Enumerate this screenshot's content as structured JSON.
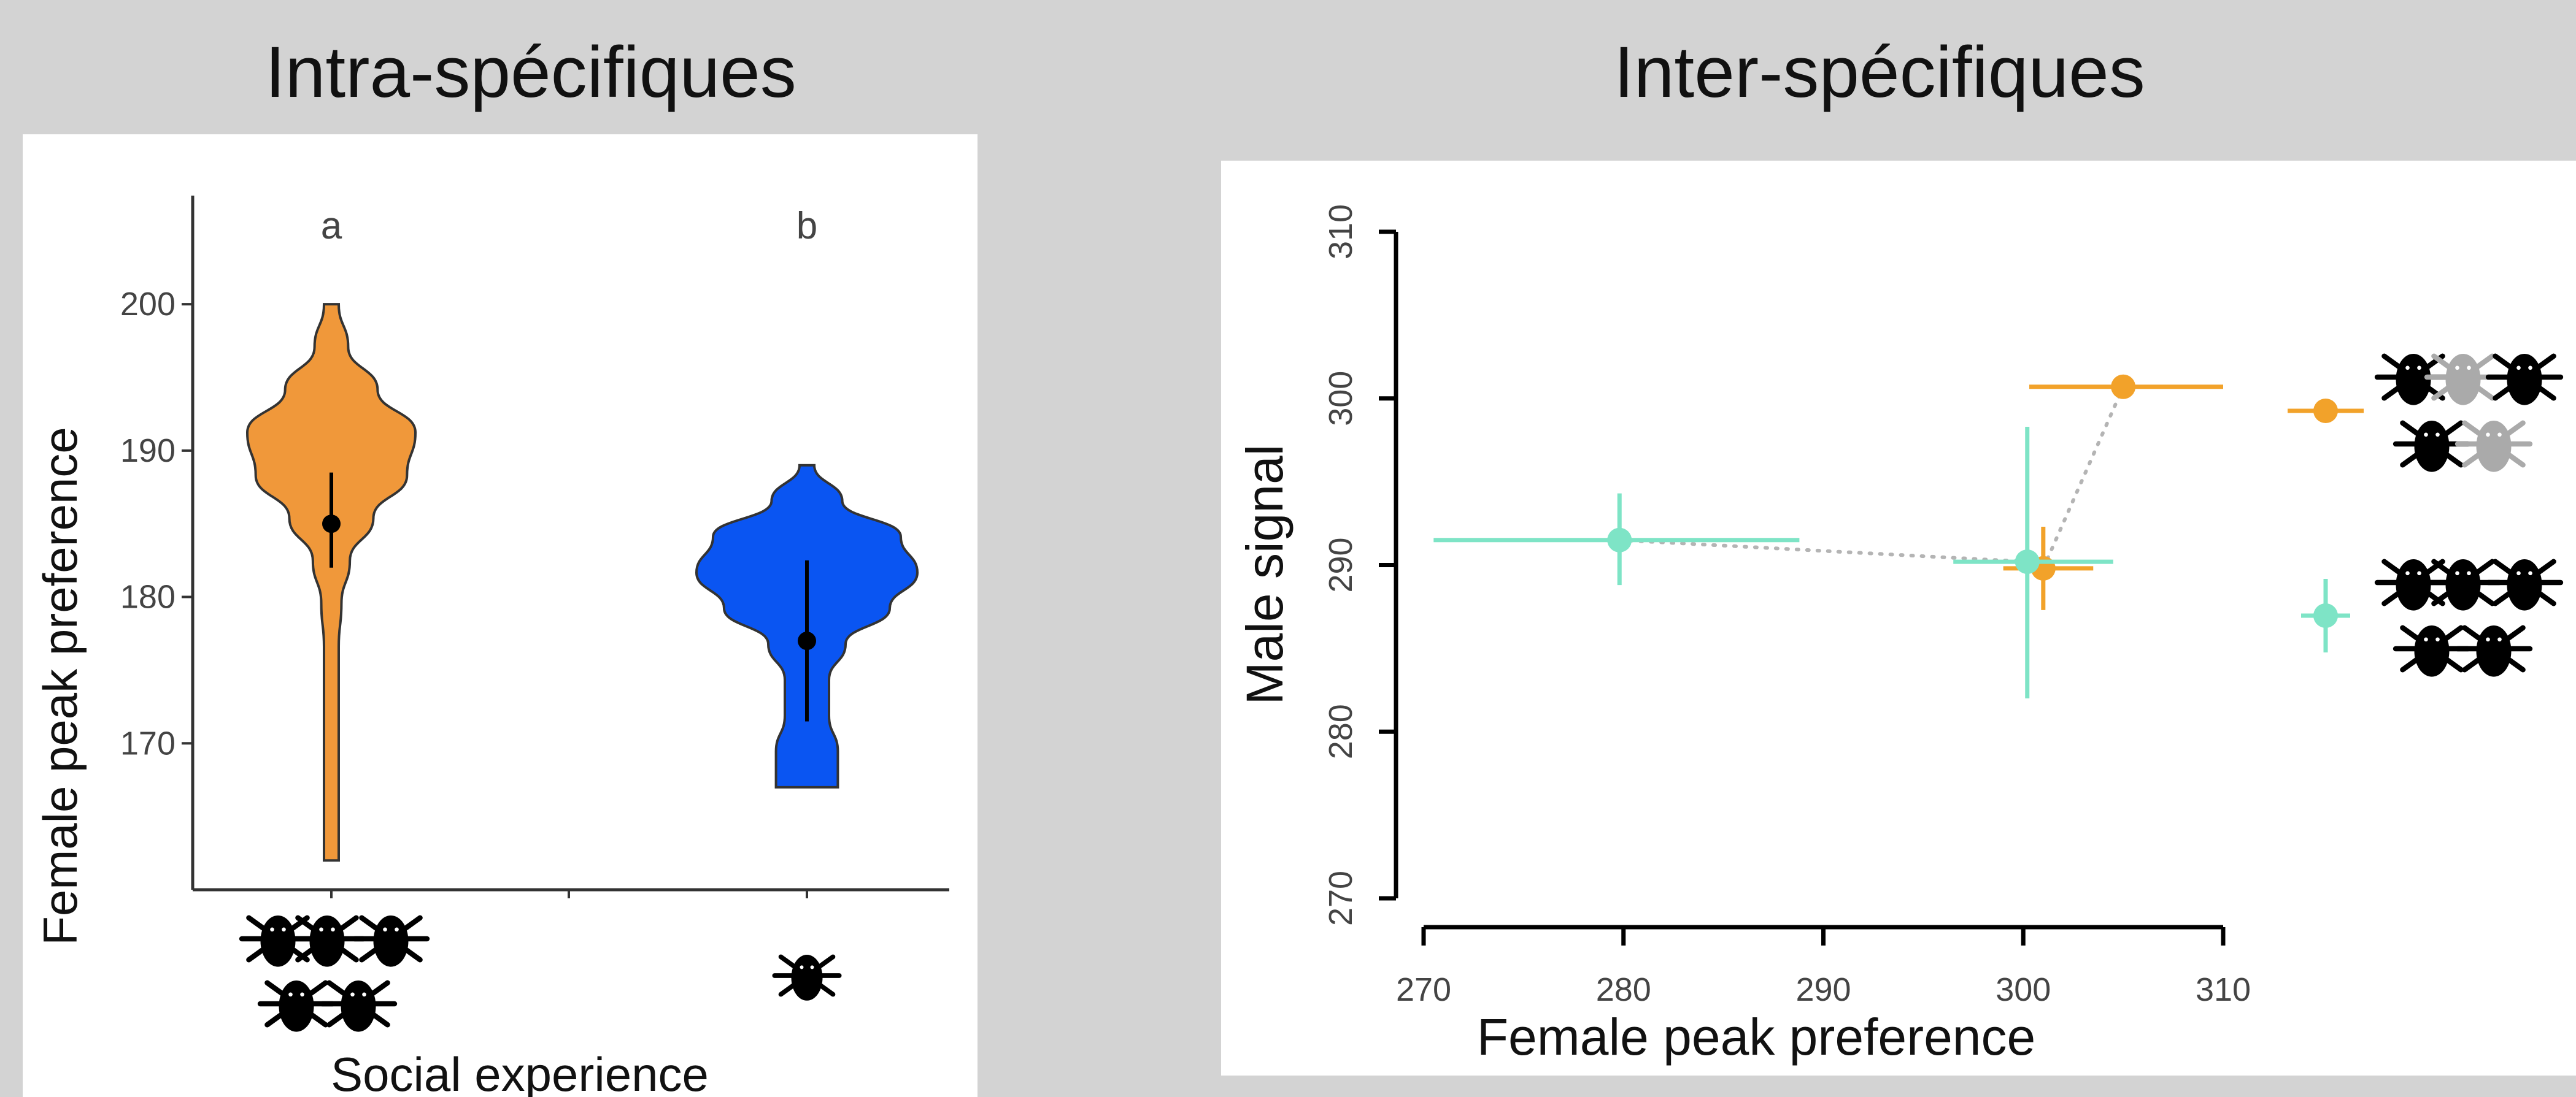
{
  "panels": {
    "left_title": "Intra-spécifiques",
    "right_title": "Inter-spécifiques"
  },
  "chart_data": [
    {
      "type": "violin",
      "xlabel": "Social experience",
      "ylabel": "Female peak preference",
      "yticks": [
        170,
        180,
        190,
        200
      ],
      "ylim": [
        160,
        207
      ],
      "grid": false,
      "groups": [
        {
          "letter": "a",
          "color": "#f0983a",
          "median": 185,
          "ci": [
            182,
            188.5
          ],
          "range": [
            162,
            200
          ],
          "icon": "five-beetles-icon"
        },
        {
          "letter": "b",
          "color": "#0a55f2",
          "median": 177,
          "ci": [
            171.5,
            182.5
          ],
          "range": [
            167,
            189
          ],
          "icon": "single-beetle-icon"
        }
      ]
    },
    {
      "type": "scatter",
      "xlabel": "Female peak preference",
      "ylabel": "Male signal",
      "xticks": [
        270,
        280,
        290,
        300,
        310
      ],
      "yticks": [
        270,
        280,
        290,
        300,
        310
      ],
      "xlim": [
        270,
        310
      ],
      "ylim": [
        270,
        310
      ],
      "grid": false,
      "series": [
        {
          "color": "#f2a22a",
          "points": [
            {
              "x": 301,
              "y": 289.8,
              "xerr": [
                299,
                303.5
              ],
              "yerr": [
                287.3,
                292.3
              ]
            },
            {
              "x": 305,
              "y": 300.7,
              "xerr": [
                300.3,
                310
              ]
            }
          ]
        },
        {
          "color": "#7ee4c6",
          "points": [
            {
              "x": 279.8,
              "y": 291.5,
              "xerr": [
                270.5,
                288.8
              ],
              "yerr": [
                288.8,
                294.3
              ]
            },
            {
              "x": 300.2,
              "y": 290.2,
              "xerr": [
                296.5,
                304.5
              ],
              "yerr": [
                282,
                298.3
              ]
            }
          ]
        }
      ],
      "connectors": [
        {
          "color": "#b4b4b4",
          "style": "dotted"
        }
      ],
      "legend": [
        {
          "color": "#f2a22a",
          "icon": "mixed-grey-black-beetles-icon"
        },
        {
          "color": "#7ee4c6",
          "icon": "black-beetles-icon"
        }
      ]
    }
  ]
}
